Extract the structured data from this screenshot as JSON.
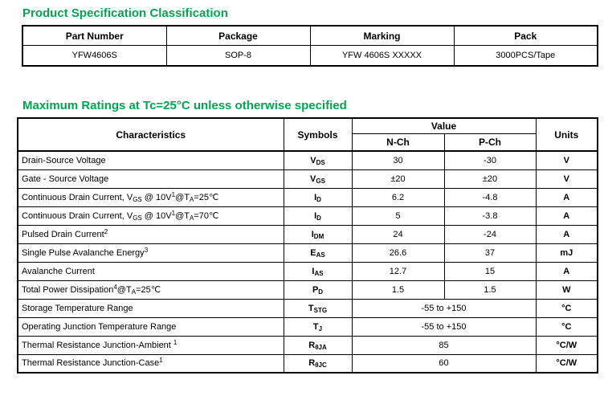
{
  "page": {
    "accent_green": "#00A651"
  },
  "product_classification": {
    "title": "Product Specification Classification",
    "headers": [
      "Part Number",
      "Package",
      "Marking",
      "Pack"
    ],
    "rows": [
      [
        "YFW4606S",
        "SOP-8",
        "YFW 4606S XXXXX",
        "3000PCS/Tape"
      ]
    ]
  },
  "maximum_ratings": {
    "title": "Maximum Ratings at Tc=25°C unless otherwise specified",
    "headers": {
      "characteristics": "Characteristics",
      "symbols": "Symbols",
      "value": "Value",
      "n_ch": "N-Ch",
      "p_ch": "P-Ch",
      "units": "Units"
    },
    "rows": [
      {
        "characteristic": "Drain-Source Voltage",
        "symbol": "V~DS~",
        "n_ch": "30",
        "p_ch": "-30",
        "units": "V"
      },
      {
        "characteristic": "Gate - Source Voltage",
        "symbol": "V~GS~",
        "n_ch": "±20",
        "p_ch": "±20",
        "units": "V"
      },
      {
        "characteristic": "Continuous Drain Current, V~GS~ @ 10V^1^@T~A~=25℃",
        "symbol": "I~D~",
        "n_ch": "6.2",
        "p_ch": "-4.8",
        "units": "A"
      },
      {
        "characteristic": "Continuous Drain Current, V~GS~ @ 10V^1^@T~A~=70℃",
        "symbol": "I~D~",
        "n_ch": "5",
        "p_ch": "-3.8",
        "units": "A"
      },
      {
        "characteristic": "Pulsed Drain Current^2^",
        "symbol": "I~DM~",
        "n_ch": "24",
        "p_ch": "-24",
        "units": "A"
      },
      {
        "characteristic": "Single Pulse Avalanche Energy^3^",
        "symbol": "E~AS~",
        "n_ch": "26.6",
        "p_ch": "37",
        "units": "mJ"
      },
      {
        "characteristic": "Avalanche Current",
        "symbol": "I~AS~",
        "n_ch": "12.7",
        "p_ch": "15",
        "units": "A"
      },
      {
        "characteristic": "Total Power Dissipation^4^@T~A~=25℃",
        "symbol": "P~D~",
        "n_ch": "1.5",
        "p_ch": "1.5",
        "units": "W"
      },
      {
        "characteristic": "Storage Temperature Range",
        "symbol": "T~STG~",
        "merged_value": "-55 to +150",
        "units": "°C"
      },
      {
        "characteristic": "Operating Junction Temperature Range",
        "symbol": "T~J~",
        "merged_value": "-55 to +150",
        "units": "°C"
      },
      {
        "characteristic": "Thermal Resistance Junction-Ambient ^1^",
        "symbol": "R~θJA~",
        "merged_value": "85",
        "units": "°C/W"
      },
      {
        "characteristic": "Thermal Resistance Junction-Case^1^",
        "symbol": "R~θJC~",
        "merged_value": "60",
        "units": "°C/W"
      }
    ]
  }
}
